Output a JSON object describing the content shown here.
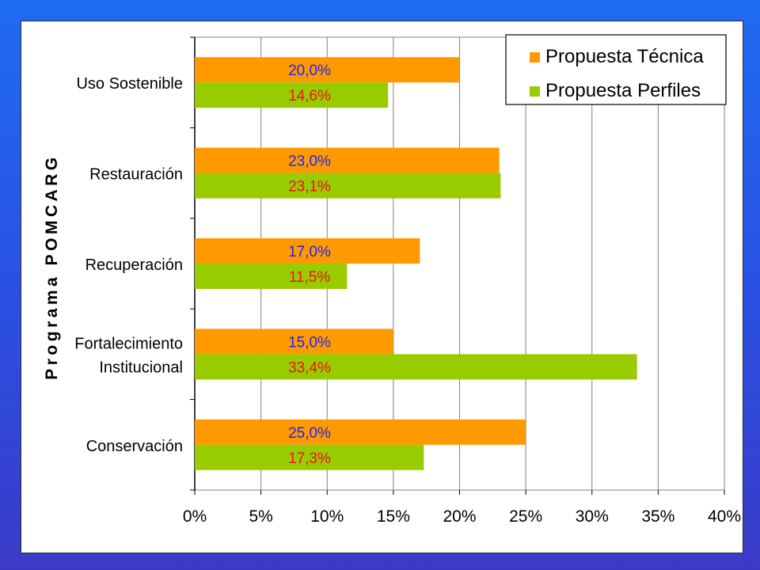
{
  "colors": {
    "series_tecnica": "#ff9900",
    "series_perfiles": "#99cc00",
    "label_tecnica": "#2222ee",
    "label_perfiles": "#ee1111",
    "background_top": "#1f6cf0",
    "background_bottom": "#3b3ac8"
  },
  "chart_data": {
    "type": "bar",
    "orientation": "horizontal",
    "title": "",
    "xlabel": "",
    "ylabel": "Programa POMCARG",
    "categories": [
      [
        "Uso Sostenible"
      ],
      [
        "Restauración"
      ],
      [
        "Recuperación"
      ],
      [
        "Fortalecimiento",
        "Institucional"
      ],
      [
        "Conservación"
      ]
    ],
    "series": [
      {
        "name": "Propuesta Técnica",
        "values": [
          20.0,
          23.0,
          17.0,
          15.0,
          25.0
        ],
        "labels": [
          "20,0%",
          "23,0%",
          "17,0%",
          "15,0%",
          "25,0%"
        ]
      },
      {
        "name": "Propuesta Perfiles",
        "values": [
          14.6,
          23.1,
          11.5,
          33.4,
          17.3
        ],
        "labels": [
          "14,6%",
          "23,1%",
          "11,5%",
          "33,4%",
          "17,3%"
        ]
      }
    ],
    "xlim": [
      0,
      40
    ],
    "xticks": [
      "0%",
      "5%",
      "10%",
      "15%",
      "20%",
      "25%",
      "30%",
      "35%",
      "40%"
    ],
    "grid": true,
    "legend_position": "top-right"
  }
}
